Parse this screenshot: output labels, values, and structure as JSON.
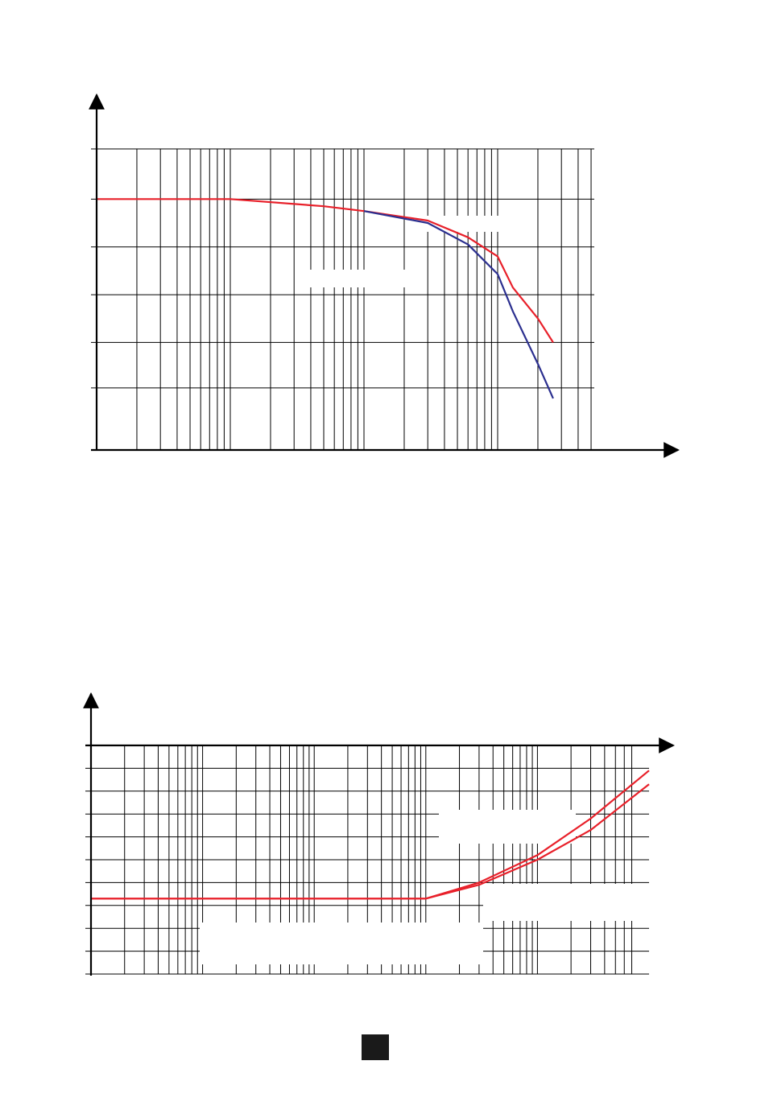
{
  "page": {
    "marker_color": "#1a1a1a"
  },
  "colors": {
    "axis": "#000000",
    "grid": "#000000",
    "red": "#e8202a",
    "blue": "#2b2f8f",
    "mask": "#ffffff"
  },
  "chart_data": [
    {
      "type": "line",
      "title": "",
      "xlabel": "",
      "ylabel": "",
      "x_scale": "log",
      "xlim": [
        1,
        10000
      ],
      "ylim": [
        0,
        6.3
      ],
      "grid": true,
      "legend": "none",
      "series": [
        {
          "color": "#e8202a",
          "x": [
            1,
            10,
            50,
            100,
            300,
            600,
            1000,
            1300,
            2000,
            2600
          ],
          "y": [
            5.25,
            5.25,
            5.1,
            5.0,
            4.8,
            4.45,
            4.05,
            3.4,
            2.75,
            2.25
          ]
        },
        {
          "color": "#2b2f8f",
          "x": [
            100,
            300,
            600,
            1000,
            1300,
            2000,
            2600
          ],
          "y": [
            5.0,
            4.75,
            4.3,
            3.68,
            2.9,
            1.8,
            1.08
          ]
        }
      ]
    },
    {
      "type": "line",
      "title": "",
      "xlabel": "",
      "ylabel": "",
      "x_scale": "log",
      "xlim": [
        1,
        100000
      ],
      "ylim": [
        -10,
        0
      ],
      "grid": true,
      "legend": "none",
      "series": [
        {
          "color": "#e8202a",
          "x": [
            1,
            1000,
            3000,
            10000,
            30000,
            100000
          ],
          "y": [
            -6.7,
            -6.7,
            -6.0,
            -4.8,
            -3.2,
            -1.1
          ]
        },
        {
          "color": "#e8202a",
          "x": [
            1,
            1000,
            3000,
            10000,
            30000,
            100000
          ],
          "y": [
            -6.7,
            -6.7,
            -6.1,
            -5.0,
            -3.7,
            -1.7
          ]
        }
      ]
    }
  ]
}
